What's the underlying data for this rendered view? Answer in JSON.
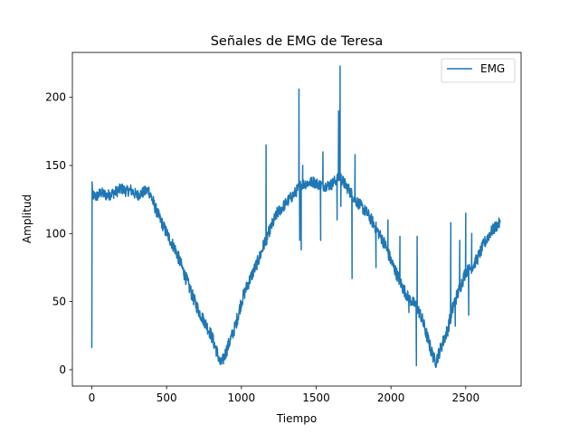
{
  "chart_data": {
    "type": "line",
    "title": "Señales de EMG de Teresa",
    "xlabel": "Tiempo",
    "ylabel": "Amplitud",
    "xlim": [
      -130,
      2870
    ],
    "ylim": [
      -12,
      233
    ],
    "xticks": [
      0,
      500,
      1000,
      1500,
      2000,
      2500
    ],
    "yticks": [
      0,
      50,
      100,
      150,
      200
    ],
    "grid": false,
    "legend_position": "top-right",
    "color": "#1f77b4",
    "series": [
      {
        "name": "EMG",
        "x": [
          0,
          2,
          5,
          10,
          30,
          60,
          100,
          150,
          200,
          230,
          260,
          300,
          340,
          380,
          420,
          450,
          480,
          520,
          560,
          600,
          640,
          680,
          720,
          760,
          800,
          840,
          860,
          880,
          920,
          960,
          1000,
          1040,
          1080,
          1120,
          1160,
          1180,
          1200,
          1240,
          1280,
          1320,
          1360,
          1380,
          1400,
          1440,
          1480,
          1520,
          1560,
          1600,
          1640,
          1660,
          1680,
          1720,
          1760,
          1800,
          1840,
          1880,
          1920,
          1960,
          2000,
          2040,
          2080,
          2120,
          2160,
          2200,
          2240,
          2280,
          2300,
          2340,
          2380,
          2420,
          2460,
          2500,
          2540,
          2580,
          2620,
          2660,
          2700,
          2730
        ],
        "y": [
          16,
          140,
          125,
          128,
          127,
          130,
          128,
          130,
          133,
          131,
          132,
          128,
          130,
          132,
          120,
          112,
          105,
          96,
          88,
          76,
          64,
          52,
          42,
          34,
          25,
          12,
          4,
          8,
          20,
          32,
          50,
          62,
          72,
          82,
          95,
          100,
          105,
          115,
          120,
          125,
          130,
          133,
          136,
          137,
          138,
          136,
          135,
          136,
          140,
          142,
          138,
          132,
          125,
          120,
          115,
          108,
          100,
          92,
          80,
          70,
          60,
          52,
          48,
          40,
          25,
          10,
          6,
          18,
          30,
          48,
          60,
          72,
          75,
          82,
          92,
          100,
          105,
          108
        ]
      }
    ],
    "spikes": [
      {
        "x": 1165,
        "y": 165
      },
      {
        "x": 1170,
        "y": 92
      },
      {
        "x": 1385,
        "y": 206
      },
      {
        "x": 1390,
        "y": 95
      },
      {
        "x": 1400,
        "y": 88
      },
      {
        "x": 1410,
        "y": 150
      },
      {
        "x": 1530,
        "y": 95
      },
      {
        "x": 1545,
        "y": 160
      },
      {
        "x": 1640,
        "y": 110
      },
      {
        "x": 1650,
        "y": 190
      },
      {
        "x": 1660,
        "y": 223
      },
      {
        "x": 1665,
        "y": 120
      },
      {
        "x": 1740,
        "y": 67
      },
      {
        "x": 1760,
        "y": 158
      },
      {
        "x": 1900,
        "y": 75
      },
      {
        "x": 1980,
        "y": 110
      },
      {
        "x": 2060,
        "y": 98
      },
      {
        "x": 2120,
        "y": 42
      },
      {
        "x": 2170,
        "y": 3
      },
      {
        "x": 2175,
        "y": 98
      },
      {
        "x": 2400,
        "y": 108
      },
      {
        "x": 2430,
        "y": 32
      },
      {
        "x": 2460,
        "y": 95
      },
      {
        "x": 2500,
        "y": 115
      },
      {
        "x": 2520,
        "y": 40
      },
      {
        "x": 2540,
        "y": 100
      }
    ]
  }
}
